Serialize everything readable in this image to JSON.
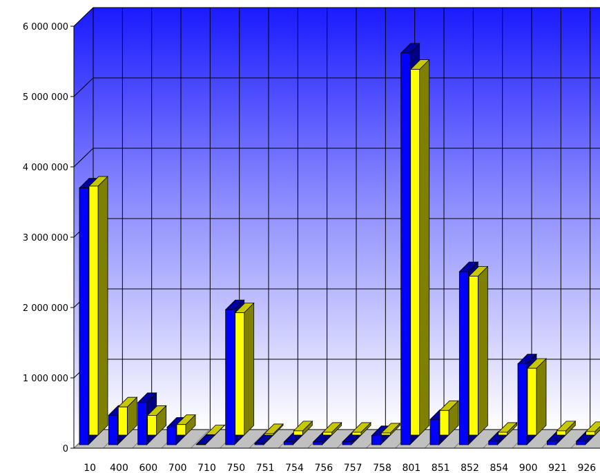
{
  "chart_data": {
    "type": "bar",
    "title": "",
    "xlabel": "",
    "ylabel": "",
    "ylim": [
      0,
      6000000
    ],
    "grid": true,
    "legend": "none",
    "y_ticks": [
      {
        "value": 0,
        "label": "0"
      },
      {
        "value": 1000000,
        "label": "1 000 000"
      },
      {
        "value": 2000000,
        "label": "2 000 000"
      },
      {
        "value": 3000000,
        "label": "3 000 000"
      },
      {
        "value": 4000000,
        "label": "4 000 000"
      },
      {
        "value": 5000000,
        "label": "5 000 000"
      },
      {
        "value": 6000000,
        "label": "6 000 000"
      }
    ],
    "categories": [
      "10",
      "400",
      "600",
      "700",
      "710",
      "750",
      "751",
      "754",
      "756",
      "757",
      "758",
      "801",
      "851",
      "852",
      "854",
      "900",
      "921",
      "926"
    ],
    "series": [
      {
        "color": "#0000ff",
        "values": [
          3650000,
          420000,
          600000,
          250000,
          5000,
          1920000,
          20000,
          40000,
          40000,
          40000,
          130000,
          5570000,
          360000,
          2460000,
          50000,
          1150000,
          50000,
          50000
        ]
      },
      {
        "color": "#ffff00",
        "values": [
          3540000,
          400000,
          280000,
          150000,
          5000,
          1740000,
          20000,
          60000,
          40000,
          40000,
          30000,
          5200000,
          350000,
          2260000,
          40000,
          950000,
          60000,
          50000
        ]
      }
    ],
    "colors": {
      "back_wall_top": "#1a1aff",
      "back_wall_bottom": "#ffffff",
      "grid": "#000000",
      "series1_top": "#0000a0",
      "series1_side": "#000080",
      "series2_top": "#c8c800",
      "series2_side": "#808000",
      "floor": "#c0c0c0"
    }
  }
}
